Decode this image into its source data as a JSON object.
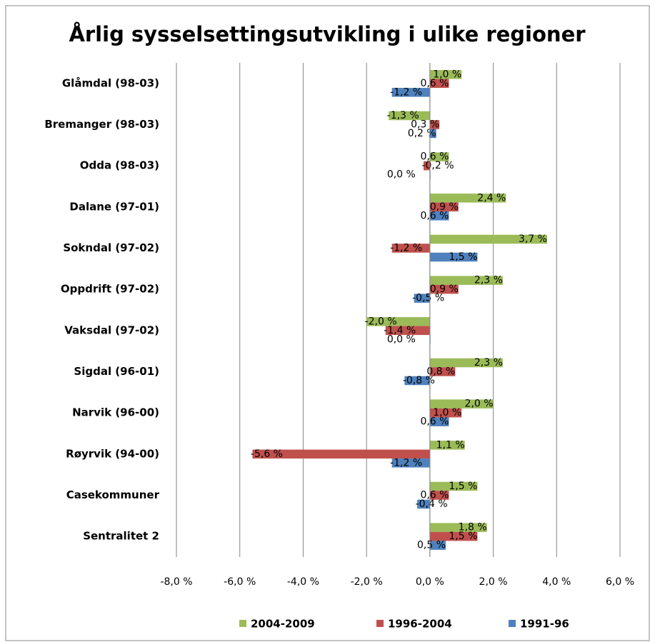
{
  "chart_data": {
    "type": "hbar",
    "title": "Årlig sysselsettingsutvikling i ulike regioner",
    "categories": [
      "Glåmdal (98-03)",
      "Bremanger (98-03)",
      "Odda (98-03)",
      "Dalane (97-01)",
      "Sokndal (97-02)",
      "Oppdrift (97-02)",
      "Vaksdal (97-02)",
      "Sigdal (96-01)",
      "Narvik (96-00)",
      "Røyrvik (94-00)",
      "Casekommuner",
      "Sentralitet 2"
    ],
    "series": [
      {
        "name": "2004-2009",
        "color": "#9bbb59",
        "values": [
          1.0,
          -1.3,
          0.6,
          2.4,
          3.7,
          2.3,
          -2.0,
          2.3,
          2.0,
          1.1,
          1.5,
          1.8
        ],
        "value_labels": [
          "1,0 %",
          "-1,3 %",
          "0,6 %",
          "2,4 %",
          "3,7 %",
          "2,3 %",
          "-2,0 %",
          "2,3 %",
          "2,0 %",
          "1,1 %",
          "1,5 %",
          "1,8 %"
        ]
      },
      {
        "name": "1996-2004",
        "color": "#c0504d",
        "values": [
          0.6,
          0.3,
          -0.2,
          0.9,
          -1.2,
          0.9,
          -1.4,
          0.8,
          1.0,
          -5.6,
          0.6,
          1.5
        ],
        "value_labels": [
          "0,6 %",
          "0,3 %",
          "-0,2 %",
          "0,9 %",
          "-1,2 %",
          "0,9 %",
          "-1,4 %",
          "0,8 %",
          "1,0 %",
          "-5,6 %",
          "0,6 %",
          "1,5 %"
        ]
      },
      {
        "name": "1991-96",
        "color": "#4f81bd",
        "values": [
          -1.2,
          0.2,
          0.0,
          0.6,
          1.5,
          -0.5,
          0.0,
          -0.8,
          0.6,
          -1.2,
          -0.4,
          0.5
        ],
        "value_labels": [
          "-1,2 %",
          "0,2 %",
          "0,0 %",
          "0,6 %",
          "1,5 %",
          "-0,5 %",
          "0,0 %",
          "-0,8 %",
          "0,6 %",
          "-1,2 %",
          "-0,4 %",
          "0,5 %"
        ]
      }
    ],
    "xlim": [
      -8,
      6
    ],
    "xticks": [
      {
        "value": -8,
        "label": "-8,0 %"
      },
      {
        "value": -6,
        "label": "-6,0 %"
      },
      {
        "value": -4,
        "label": "-4,0 %"
      },
      {
        "value": -2,
        "label": "-2,0 %"
      },
      {
        "value": 0,
        "label": "0,0 %"
      },
      {
        "value": 2,
        "label": "2,0 %"
      },
      {
        "value": 4,
        "label": "4,0 %"
      },
      {
        "value": 6,
        "label": "6,0 %"
      }
    ],
    "grid": true,
    "legend": "bottom"
  }
}
